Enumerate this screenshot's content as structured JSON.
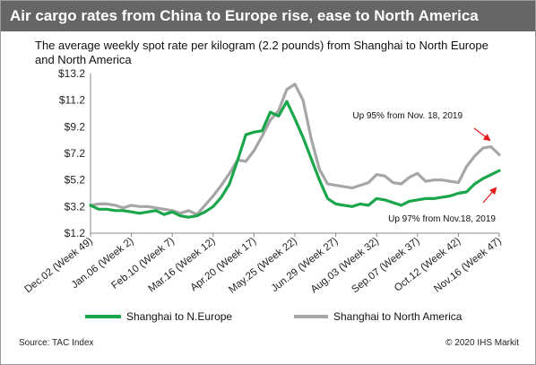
{
  "header": {
    "title": "Air cargo rates from China to Europe rise, ease to North America",
    "subtitle": "The average weekly spot rate per kilogram (2.2 pounds) from Shanghai to North Europe and North America"
  },
  "footer": {
    "source": "Source: TAC Index",
    "copyright": "© 2020 IHS Markit"
  },
  "colors": {
    "europe": "#1aa64a",
    "america": "#a6a6a6",
    "arrow": "#e8191b",
    "titlebar": "#666666"
  },
  "chart_data": {
    "type": "line",
    "title": "",
    "xlabel": "",
    "ylabel": "",
    "ylim": [
      1.2,
      13.2
    ],
    "yticks": [
      "$1.2",
      "$3.2",
      "$5.2",
      "$7.2",
      "$9.2",
      "$11.2",
      "$13.2"
    ],
    "ytick_values": [
      1.2,
      3.2,
      5.2,
      7.2,
      9.2,
      11.2,
      13.2
    ],
    "xticks": [
      "Dec.02 (Week 49)",
      "Jan.06 (Week 2)",
      "Feb.10 (Week 7)",
      "Mar.16 (Week 12)",
      "Apr.20 (Week 17)",
      "May.25 (Week 22)",
      "Jun.29 (Week 27)",
      "Aug.03 (Week 32)",
      "Sep.07 (Week 37)",
      "Oct.12 (Week 42)",
      "Nov.16 (Week 47)"
    ],
    "xtick_index": [
      0,
      5,
      10,
      15,
      20,
      25,
      30,
      35,
      40,
      45,
      50
    ],
    "grid": false,
    "legend_position": "bottom",
    "series": [
      {
        "name": "Shanghai to N.Europe",
        "color": "#1aa64a",
        "values": [
          3.3,
          3.0,
          3.0,
          2.9,
          2.9,
          2.8,
          2.7,
          2.8,
          2.9,
          2.6,
          2.8,
          2.5,
          2.4,
          2.5,
          2.8,
          3.2,
          3.9,
          4.9,
          6.7,
          8.6,
          8.8,
          8.9,
          10.3,
          10.0,
          11.1,
          9.8,
          8.4,
          6.8,
          5.2,
          3.8,
          3.4,
          3.3,
          3.2,
          3.4,
          3.3,
          3.8,
          3.7,
          3.5,
          3.3,
          3.6,
          3.7,
          3.8,
          3.8,
          3.9,
          4.0,
          4.2,
          4.3,
          4.9,
          5.3,
          5.6,
          5.9
        ]
      },
      {
        "name": "Shanghai to North America",
        "color": "#a6a6a6",
        "values": [
          3.3,
          3.4,
          3.4,
          3.3,
          3.1,
          3.3,
          3.2,
          3.2,
          3.1,
          3.0,
          2.9,
          2.7,
          2.9,
          2.6,
          3.3,
          4.0,
          4.8,
          5.7,
          6.7,
          6.6,
          7.4,
          8.5,
          9.7,
          10.4,
          12.0,
          12.4,
          11.2,
          8.3,
          6.0,
          4.9,
          4.8,
          4.7,
          4.6,
          4.8,
          5.0,
          5.6,
          5.5,
          5.0,
          4.9,
          5.4,
          5.7,
          5.1,
          5.2,
          5.2,
          5.1,
          5.0,
          6.2,
          7.0,
          7.6,
          7.7,
          7.1
        ]
      }
    ],
    "annotations": [
      {
        "text": "Up 95% from Nov. 18, 2019",
        "series": "Shanghai to North America"
      },
      {
        "text": "Up 97% from Nov.18, 2019",
        "series": "Shanghai to N.Europe"
      }
    ]
  }
}
